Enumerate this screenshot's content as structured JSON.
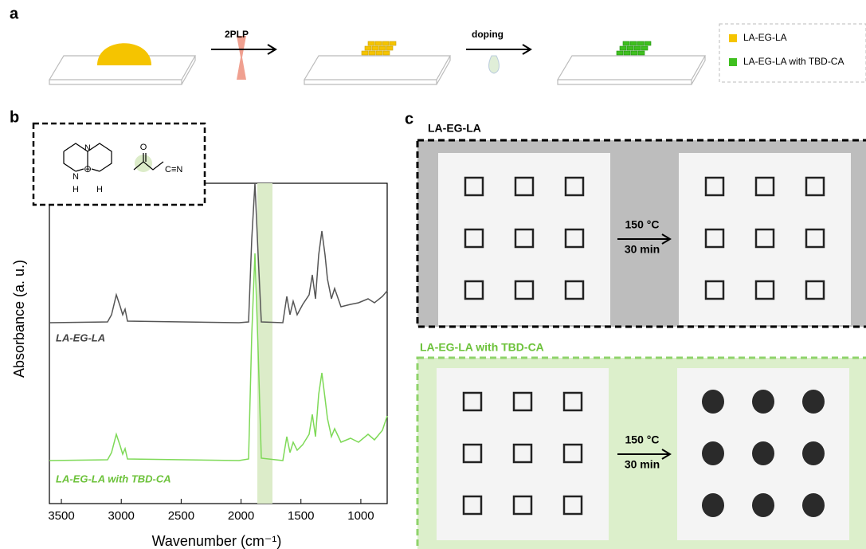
{
  "panel_a": {
    "label": "a",
    "steps": [
      "2PLP",
      "doping"
    ],
    "legend": [
      "LA-EG-LA",
      "LA-EG-LA with TBD-CA"
    ]
  },
  "panel_b": {
    "label": "b",
    "y_label": "Absorbance (a. u.)",
    "x_label": "Wavenumber (cm⁻¹)",
    "xlim": [
      3600,
      780
    ],
    "xticks": [
      3500,
      3000,
      2500,
      2000,
      1500,
      1000
    ],
    "series_labels": [
      "LA-EG-LA",
      "LA-EG-LA with TBD-CA"
    ],
    "structure_labels": [
      "N",
      "N",
      "H",
      "H",
      "⊕",
      "O",
      "C≡N"
    ]
  },
  "panel_c": {
    "label": "c",
    "titles": [
      "LA-EG-LA",
      "LA-EG-LA with TBD-CA"
    ],
    "conditions": [
      "150 °C",
      "30 min"
    ]
  }
}
